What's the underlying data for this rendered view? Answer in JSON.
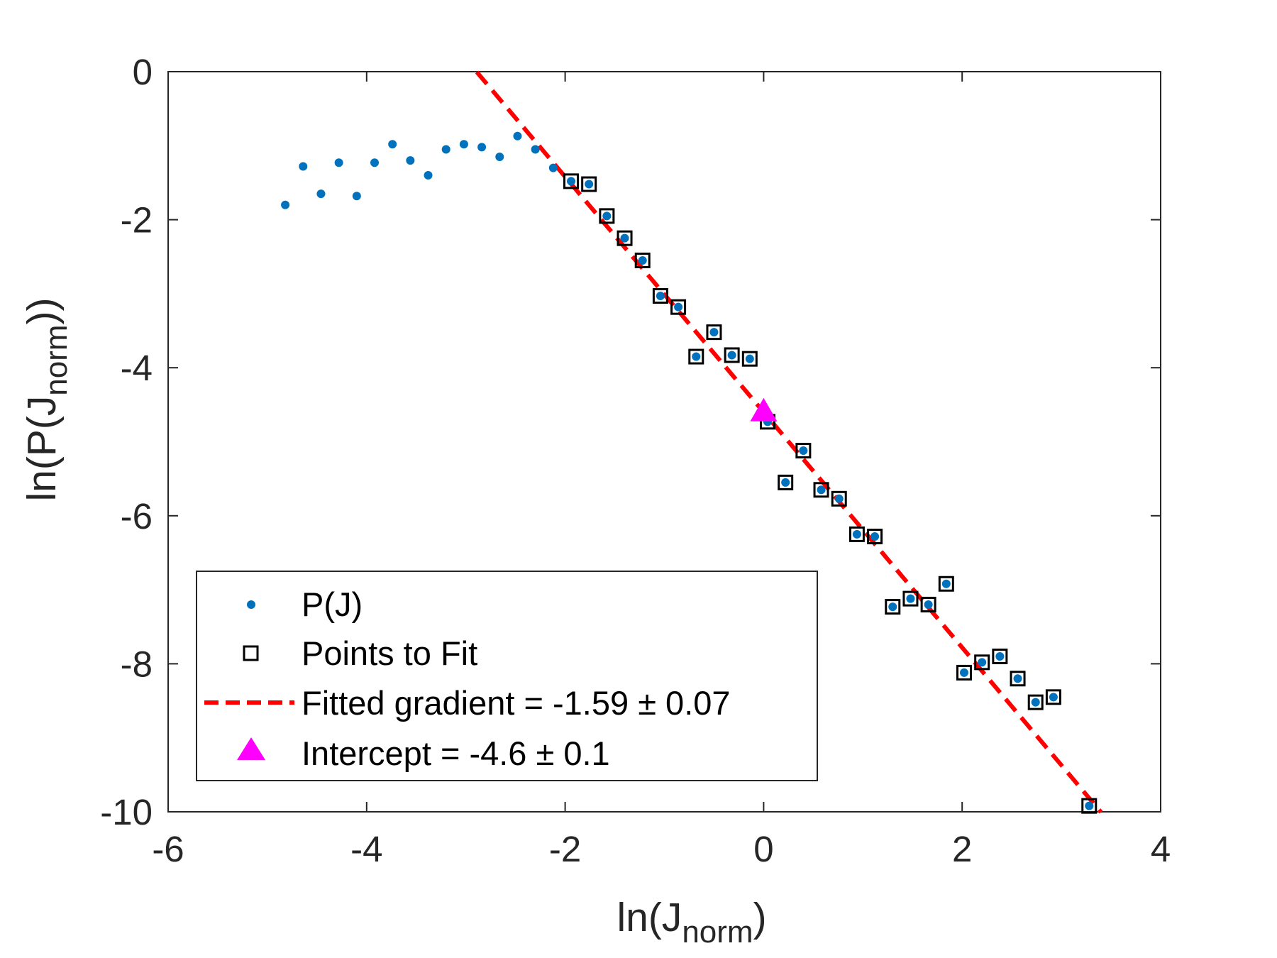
{
  "chart_data": {
    "type": "scatter",
    "xlabel": {
      "main": "ln(J",
      "sub": "norm",
      "tail": ")"
    },
    "ylabel": {
      "main": "ln(P(J",
      "sub": "norm",
      "tail": "))"
    },
    "xlim": [
      -6,
      4
    ],
    "ylim": [
      -10,
      0
    ],
    "xticks": [
      -6,
      -4,
      -2,
      0,
      2,
      4
    ],
    "yticks": [
      0,
      -2,
      -4,
      -6,
      -8,
      -10
    ],
    "xtick_labels": [
      "-6",
      "-4",
      "-2",
      "0",
      "2",
      "4"
    ],
    "ytick_labels": [
      "0",
      "-2",
      "-4",
      "-6",
      "-8",
      "-10"
    ],
    "grid": false,
    "legend_position": "bottom-left",
    "colors": {
      "pj": "#0072BD",
      "fit_box": "#000000",
      "fit_line": "#FF0000",
      "intercept": "#FF00FF",
      "axis": "#262626"
    },
    "series": [
      {
        "name": "P(J)",
        "marker": "dot",
        "x": [
          -4.82,
          -4.64,
          -4.46,
          -4.28,
          -4.1,
          -3.92,
          -3.74,
          -3.56,
          -3.38,
          -3.2,
          -3.02,
          -2.84,
          -2.66,
          -2.48,
          -2.3,
          -2.12,
          -1.94,
          -1.76,
          -1.58,
          -1.4,
          -1.22,
          -1.04,
          -0.86,
          -0.68,
          -0.5,
          -0.32,
          -0.14,
          0.04,
          0.22,
          0.4,
          0.58,
          0.76,
          0.94,
          1.12,
          1.3,
          1.48,
          1.66,
          1.84,
          2.02,
          2.2,
          2.38,
          2.56,
          2.74,
          2.92,
          3.28
        ],
        "y": [
          -1.8,
          -1.28,
          -1.65,
          -1.23,
          -1.68,
          -1.23,
          -0.98,
          -1.2,
          -1.4,
          -1.05,
          -0.98,
          -1.02,
          -1.15,
          -0.87,
          -1.05,
          -1.3,
          -1.48,
          -1.52,
          -1.95,
          -2.25,
          -2.55,
          -3.03,
          -3.18,
          -3.85,
          -3.52,
          -3.83,
          -3.88,
          -4.73,
          -5.55,
          -5.12,
          -5.65,
          -5.77,
          -6.25,
          -6.28,
          -7.23,
          -7.12,
          -7.2,
          -6.92,
          -8.12,
          -7.98,
          -7.9,
          -8.2,
          -8.52,
          -8.45,
          -9.92
        ]
      },
      {
        "name": "Points to Fit",
        "marker": "square",
        "x": [
          -1.94,
          -1.76,
          -1.58,
          -1.4,
          -1.22,
          -1.04,
          -0.86,
          -0.68,
          -0.5,
          -0.32,
          -0.14,
          0.04,
          0.22,
          0.4,
          0.58,
          0.76,
          0.94,
          1.12,
          1.3,
          1.48,
          1.66,
          1.84,
          2.02,
          2.2,
          2.38,
          2.56,
          2.74,
          2.92,
          3.28
        ],
        "y": [
          -1.48,
          -1.52,
          -1.95,
          -2.25,
          -2.55,
          -3.03,
          -3.18,
          -3.85,
          -3.52,
          -3.83,
          -3.88,
          -4.73,
          -5.55,
          -5.12,
          -5.65,
          -5.77,
          -6.25,
          -6.28,
          -7.23,
          -7.12,
          -7.2,
          -6.92,
          -8.12,
          -7.98,
          -7.9,
          -8.2,
          -8.52,
          -8.45,
          -9.92
        ]
      },
      {
        "name": "Fitted gradient = -1.59 ± 0.07",
        "marker": "dashed-line",
        "gradient": -1.59,
        "intercept": -4.6,
        "x_range": [
          -2.89,
          3.4
        ]
      },
      {
        "name": "Intercept = -4.6 ± 0.1",
        "marker": "triangle",
        "x": [
          0
        ],
        "y": [
          -4.6
        ]
      }
    ]
  }
}
